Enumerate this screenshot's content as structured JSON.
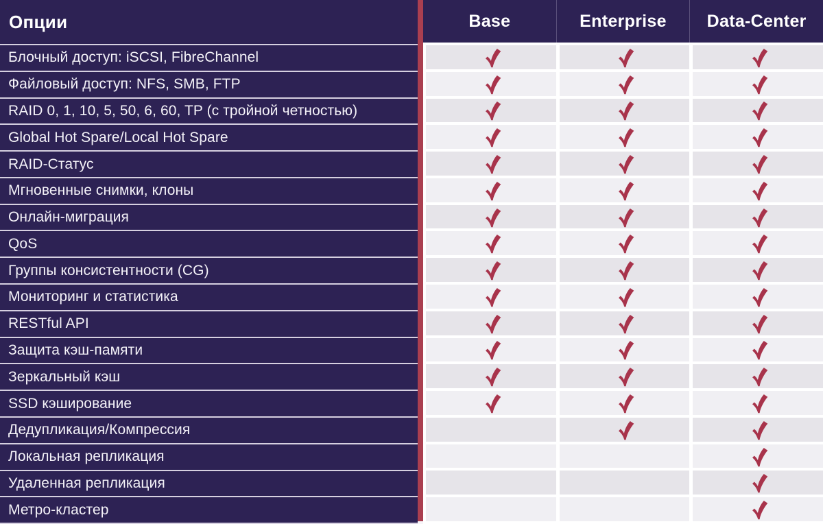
{
  "chart_data": {
    "type": "table",
    "title": "Опции",
    "header": {
      "options_label": "Опции",
      "plans": [
        "Base",
        "Enterprise",
        "Data-Center"
      ]
    },
    "rows": [
      {
        "label": "Блочный доступ: iSCSI, FibreChannel",
        "checks": [
          true,
          true,
          true
        ]
      },
      {
        "label": "Файловый доступ: NFS, SMB, FTP",
        "checks": [
          true,
          true,
          true
        ]
      },
      {
        "label": "RAID 0, 1, 10, 5, 50, 6, 60, TP (с тройной четностью)",
        "checks": [
          true,
          true,
          true
        ]
      },
      {
        "label": "Global Hot Spare/Local Hot Spare",
        "checks": [
          true,
          true,
          true
        ]
      },
      {
        "label": "RAID-Статус",
        "checks": [
          true,
          true,
          true
        ]
      },
      {
        "label": "Мгновенные снимки, клоны",
        "checks": [
          true,
          true,
          true
        ]
      },
      {
        "label": "Онлайн-миграция",
        "checks": [
          true,
          true,
          true
        ]
      },
      {
        "label": "QoS",
        "checks": [
          true,
          true,
          true
        ]
      },
      {
        "label": "Группы консистентности (CG)",
        "checks": [
          true,
          true,
          true
        ]
      },
      {
        "label": "Мониторинг и статистика",
        "checks": [
          true,
          true,
          true
        ]
      },
      {
        "label": "RESTful API",
        "checks": [
          true,
          true,
          true
        ]
      },
      {
        "label": "Защита кэш-памяти",
        "checks": [
          true,
          true,
          true
        ]
      },
      {
        "label": "Зеркальный кэш",
        "checks": [
          true,
          true,
          true
        ]
      },
      {
        "label": "SSD кэширование",
        "checks": [
          true,
          true,
          true
        ]
      },
      {
        "label": "Дедупликация/Компрессия",
        "checks": [
          false,
          true,
          true
        ]
      },
      {
        "label": "Локальная репликация",
        "checks": [
          false,
          false,
          true
        ]
      },
      {
        "label": "Удаленная репликация",
        "checks": [
          false,
          false,
          true
        ]
      },
      {
        "label": "Метро-кластер",
        "checks": [
          false,
          false,
          true
        ]
      }
    ],
    "layout_hints": {
      "row_striping": "alternating light/dark gray in plan columns",
      "check_meaning": "feature included in plan"
    }
  },
  "icons": {
    "check": "check-icon"
  },
  "colors": {
    "panel_purple": "#2d2254",
    "divider_red": "#aa3f50",
    "check": "#a8334b",
    "cell_dark": "#e6e4e9",
    "cell_light": "#f0eff3",
    "label_separator": "#d6d0e0",
    "text_white": "#ffffff"
  }
}
